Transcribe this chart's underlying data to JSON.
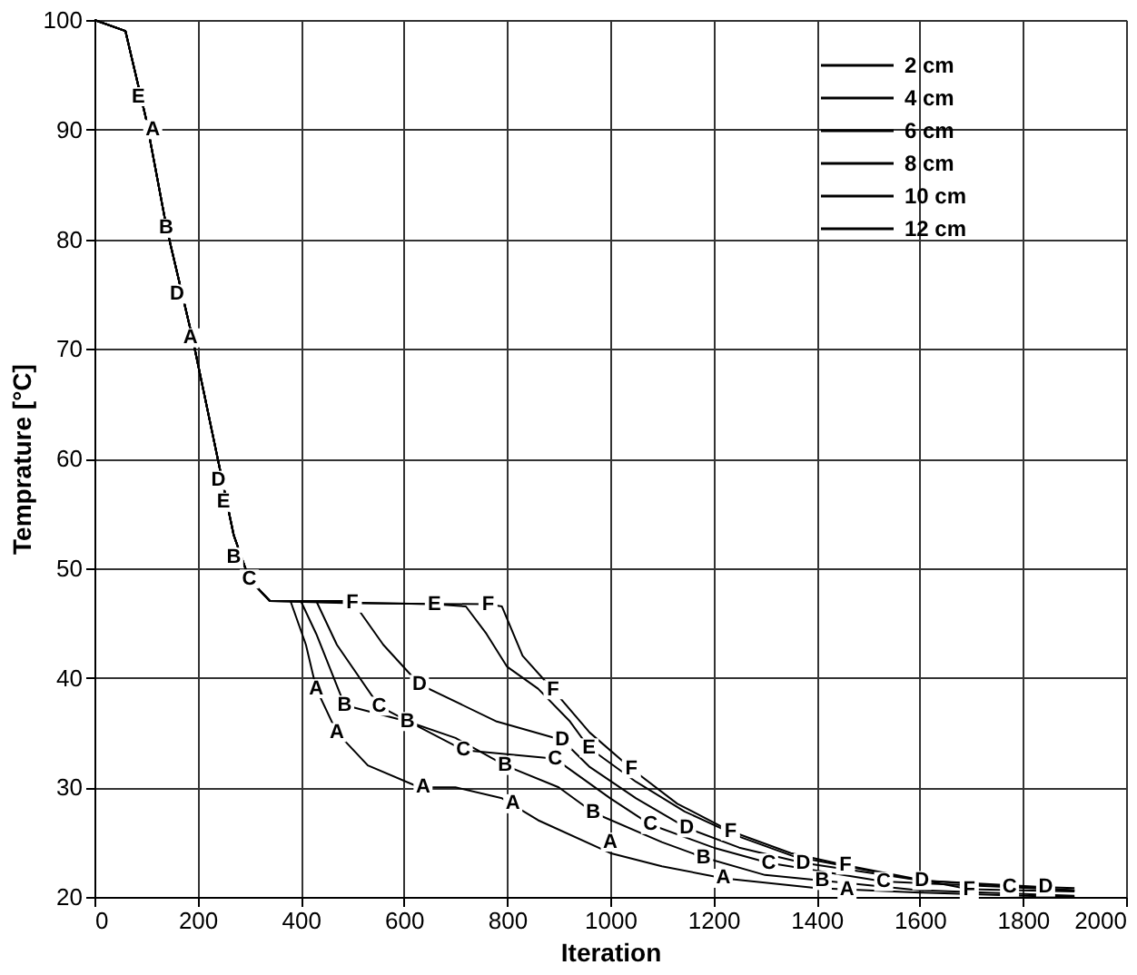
{
  "chart_data": {
    "type": "line",
    "xlabel": "Iteration",
    "ylabel": "Temprature [°C]",
    "xlim": [
      0,
      2000
    ],
    "xticks": [
      0,
      200,
      400,
      600,
      800,
      1000,
      1200,
      1400,
      1600,
      1800,
      2000
    ],
    "ylim": [
      20,
      100
    ],
    "yticks": [
      20,
      30,
      40,
      50,
      60,
      70,
      80,
      90,
      100
    ],
    "grid": true,
    "legend": "top right",
    "marker": "none",
    "line_style": "solid",
    "series": [
      {
        "name": "2 cm",
        "color": "#000000",
        "x": [
          0,
          60,
          100,
          140,
          190,
          230,
          270,
          300,
          340,
          380,
          410,
          430,
          470,
          530,
          630,
          700,
          790,
          860,
          1000,
          1100,
          1220,
          1400,
          1600,
          1800,
          1900
        ],
        "values": [
          100,
          99,
          91,
          81,
          71,
          62,
          53,
          49,
          47,
          47,
          43,
          39,
          35,
          32,
          30,
          30,
          29,
          27,
          24,
          22.8,
          21.7,
          20.8,
          20.4,
          20.1,
          20
        ]
      },
      {
        "name": "4 cm",
        "color": "#000000",
        "x": [
          0,
          60,
          100,
          140,
          190,
          230,
          270,
          300,
          340,
          400,
          430,
          485,
          607,
          700,
          796,
          900,
          967,
          1100,
          1181,
          1300,
          1411,
          1600,
          1900
        ],
        "values": [
          100,
          99,
          91,
          81,
          71,
          62,
          53,
          49,
          47,
          47,
          44,
          37.5,
          36,
          34.5,
          32,
          30,
          27.7,
          25,
          23.6,
          22,
          21.5,
          20.6,
          20.1
        ]
      },
      {
        "name": "6 cm",
        "color": "#000000",
        "x": [
          0,
          60,
          100,
          140,
          190,
          230,
          270,
          300,
          340,
          430,
          470,
          552,
          715,
          893,
          1000,
          1078,
          1200,
          1307,
          1530,
          1774,
          1900
        ],
        "values": [
          100,
          99,
          91,
          81,
          71,
          62,
          53,
          49,
          47,
          47,
          43,
          37.4,
          33.4,
          32.6,
          29,
          26.6,
          24.5,
          23.1,
          21.4,
          20.9,
          20.6
        ]
      },
      {
        "name": "8 cm",
        "color": "#000000",
        "x": [
          0,
          60,
          100,
          140,
          190,
          230,
          270,
          300,
          340,
          500,
          560,
          630,
          780,
          907,
          959,
          1050,
          1148,
          1250,
          1374,
          1604,
          1844,
          1900
        ],
        "values": [
          100,
          99,
          91,
          81,
          71,
          62,
          53,
          49,
          47,
          47,
          43,
          39.4,
          36,
          34.3,
          31.9,
          29,
          26.3,
          24.5,
          23.1,
          21.5,
          20.9,
          20.8
        ]
      },
      {
        "name": "10 cm",
        "color": "#000000",
        "x": [
          0,
          60,
          100,
          140,
          190,
          230,
          270,
          300,
          340,
          659,
          720,
          760,
          800,
          860,
          922,
          959,
          1050,
          1144,
          1250,
          1356,
          1600,
          1900
        ],
        "values": [
          100,
          99,
          91,
          81,
          71,
          62,
          53,
          49,
          47,
          46.7,
          46.5,
          44,
          41,
          39,
          36,
          33.6,
          30.5,
          27.8,
          25.5,
          23.7,
          21.5,
          20.6
        ]
      },
      {
        "name": "12 cm",
        "color": "#000000",
        "x": [
          0,
          60,
          100,
          140,
          190,
          230,
          270,
          300,
          340,
          500,
          763,
          790,
          830,
          889,
          960,
          1041,
          1130,
          1233,
          1350,
          1456,
          1696,
          1900
        ],
        "values": [
          100,
          99,
          91,
          81,
          71,
          62,
          53,
          49,
          47,
          46.8,
          46.7,
          46.5,
          42,
          38.9,
          35,
          31.7,
          28.5,
          26,
          24,
          22.9,
          20.7,
          20.5
        ]
      }
    ],
    "annotations": [
      {
        "text": "A",
        "x": 113,
        "y": 90
      },
      {
        "text": "A",
        "x": 186,
        "y": 71
      },
      {
        "text": "A",
        "x": 430,
        "y": 39
      },
      {
        "text": "A",
        "x": 470,
        "y": 35
      },
      {
        "text": "A",
        "x": 637,
        "y": 30
      },
      {
        "text": "A",
        "x": 811,
        "y": 28.5
      },
      {
        "text": "A",
        "x": 1000,
        "y": 25
      },
      {
        "text": "A",
        "x": 1219,
        "y": 21.7
      },
      {
        "text": "A",
        "x": 1459,
        "y": 20.7
      },
      {
        "text": "B",
        "x": 139,
        "y": 81
      },
      {
        "text": "B",
        "x": 270,
        "y": 51
      },
      {
        "text": "B",
        "x": 485,
        "y": 37.5
      },
      {
        "text": "B",
        "x": 607,
        "y": 36
      },
      {
        "text": "B",
        "x": 796,
        "y": 32
      },
      {
        "text": "B",
        "x": 967,
        "y": 27.7
      },
      {
        "text": "B",
        "x": 1181,
        "y": 23.6
      },
      {
        "text": "B",
        "x": 1411,
        "y": 21.5
      },
      {
        "text": "C",
        "x": 300,
        "y": 49
      },
      {
        "text": "C",
        "x": 552,
        "y": 37.4
      },
      {
        "text": "C",
        "x": 715,
        "y": 33.4
      },
      {
        "text": "C",
        "x": 893,
        "y": 32.6
      },
      {
        "text": "C",
        "x": 1078,
        "y": 26.6
      },
      {
        "text": "C",
        "x": 1307,
        "y": 23.1
      },
      {
        "text": "C",
        "x": 1530,
        "y": 21.4
      },
      {
        "text": "C",
        "x": 1774,
        "y": 20.9
      },
      {
        "text": "D",
        "x": 160,
        "y": 75
      },
      {
        "text": "D",
        "x": 240,
        "y": 58
      },
      {
        "text": "D",
        "x": 630,
        "y": 39.4
      },
      {
        "text": "D",
        "x": 907,
        "y": 34.3
      },
      {
        "text": "D",
        "x": 1148,
        "y": 26.3
      },
      {
        "text": "D",
        "x": 1374,
        "y": 23.1
      },
      {
        "text": "D",
        "x": 1604,
        "y": 21.5
      },
      {
        "text": "D",
        "x": 1844,
        "y": 20.9
      },
      {
        "text": "E",
        "x": 85,
        "y": 93
      },
      {
        "text": "E",
        "x": 250,
        "y": 56
      },
      {
        "text": "E",
        "x": 659,
        "y": 46.7
      },
      {
        "text": "E",
        "x": 959,
        "y": 33.6
      },
      {
        "text": "F",
        "x": 500,
        "y": 46.8
      },
      {
        "text": "F",
        "x": 763,
        "y": 46.7
      },
      {
        "text": "F",
        "x": 889,
        "y": 38.9
      },
      {
        "text": "F",
        "x": 1041,
        "y": 31.7
      },
      {
        "text": "F",
        "x": 1233,
        "y": 26
      },
      {
        "text": "F",
        "x": 1456,
        "y": 22.9
      },
      {
        "text": "F",
        "x": 1696,
        "y": 20.7
      }
    ]
  }
}
